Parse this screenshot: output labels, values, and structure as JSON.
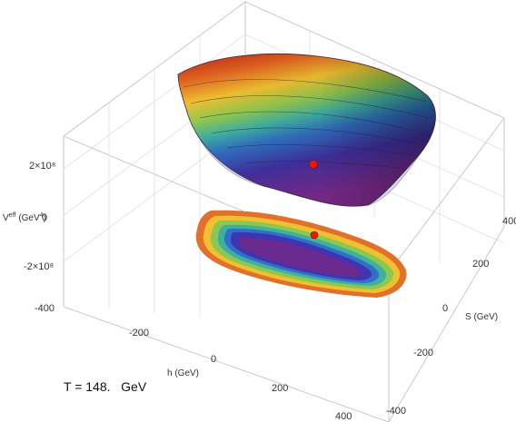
{
  "chart_data": {
    "type": "surface3d",
    "title": "",
    "temperature_label": "T = 148.   GeV",
    "xlabel": "h (GeV)",
    "ylabel": "S (GeV)",
    "zlabel_main": "V",
    "zlabel_sup": "eff",
    "zlabel_unit": "(GeV",
    "zlabel_unit_sup": "4",
    "zlabel_unit_close": ")",
    "xlim": [
      -400,
      400
    ],
    "ylim": [
      -400,
      400
    ],
    "x_ticks": [
      "-200",
      "0",
      "200",
      "400"
    ],
    "y_ticks": [
      "400",
      "200",
      "0",
      "-200",
      "-400"
    ],
    "z_ticks": [
      "2×10⁸",
      "0",
      "-2×10⁸",
      "-400"
    ],
    "minimum_point": {
      "h": 0,
      "S": 0
    },
    "colormap": [
      "#b02010",
      "#e06020",
      "#f0c030",
      "#90c850",
      "#40b0a0",
      "#3070c0",
      "#4030a0",
      "#7a2a8a"
    ],
    "grid": true
  }
}
